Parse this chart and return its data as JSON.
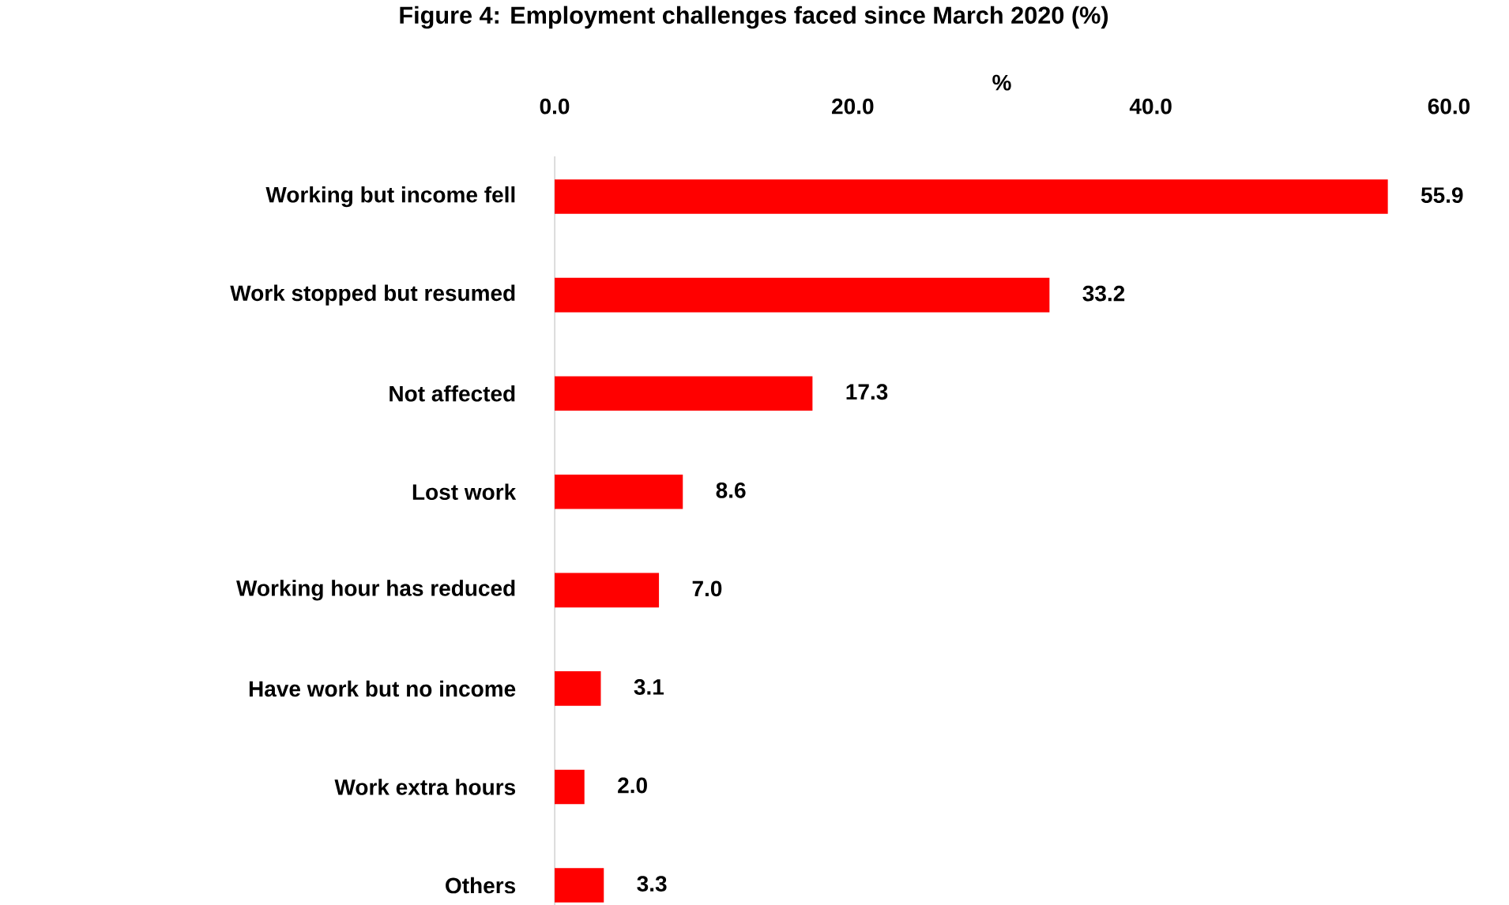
{
  "chart_data": {
    "type": "bar",
    "orientation": "horizontal",
    "title": "Figure 4: Employment challenges faced since March 2020 (%)",
    "xlabel": "%",
    "categories": [
      "Working but income fell",
      "Work stopped but resumed",
      "Not affected",
      "Lost work",
      "Working hour has reduced",
      "Have work but no income",
      "Work extra hours",
      "Others"
    ],
    "values": [
      55.9,
      33.2,
      17.3,
      8.6,
      7.0,
      3.1,
      2.0,
      3.3
    ],
    "value_labels": [
      "55.9",
      "33.2",
      "17.3",
      "8.6",
      "7.0",
      "3.1",
      "2.0",
      "3.3"
    ],
    "color": "#ff0000",
    "xlim": [
      0,
      60
    ],
    "xticks": [
      {
        "value": 0,
        "label": "0.0"
      },
      {
        "value": 20,
        "label": "20.0"
      },
      {
        "value": 40,
        "label": "40.0"
      },
      {
        "value": 60,
        "label": "60.0"
      }
    ]
  }
}
